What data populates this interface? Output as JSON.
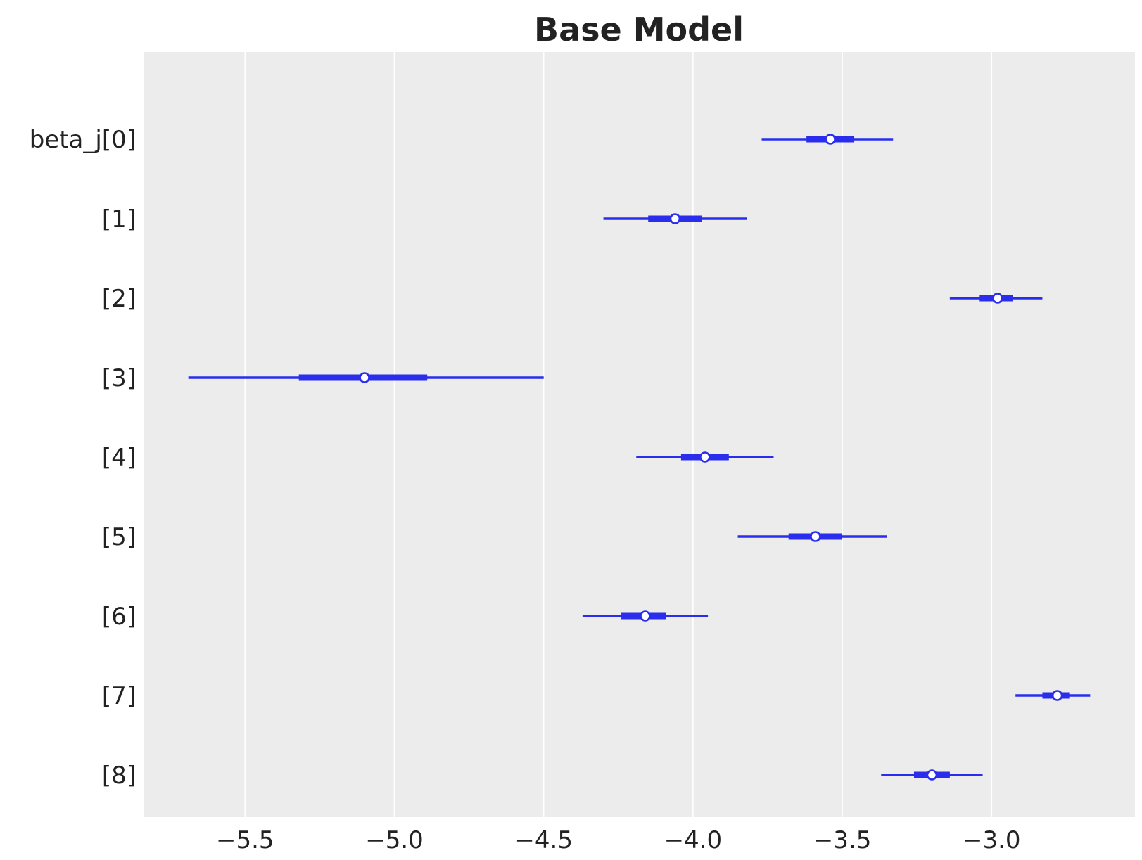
{
  "chart_data": {
    "type": "forest",
    "title": "Base Model",
    "xlabel": "",
    "ylabel": "",
    "xlim": [
      -5.84,
      -2.52
    ],
    "grid": "vertical",
    "x_ticks": [
      {
        "value": -5.5,
        "label": "−5.5"
      },
      {
        "value": -5.0,
        "label": "−5.0"
      },
      {
        "value": -4.5,
        "label": "−4.5"
      },
      {
        "value": -4.0,
        "label": "−4.0"
      },
      {
        "value": -3.5,
        "label": "−3.5"
      },
      {
        "value": -3.0,
        "label": "−3.0"
      }
    ],
    "rows": [
      {
        "label": "beta_j[0]",
        "mean": -3.54,
        "hdi_low": -3.77,
        "hdi_high": -3.33,
        "iqr_low": -3.62,
        "iqr_high": -3.46
      },
      {
        "label": "[1]",
        "mean": -4.06,
        "hdi_low": -4.3,
        "hdi_high": -3.82,
        "iqr_low": -4.15,
        "iqr_high": -3.97
      },
      {
        "label": "[2]",
        "mean": -2.98,
        "hdi_low": -3.14,
        "hdi_high": -2.83,
        "iqr_low": -3.04,
        "iqr_high": -2.93
      },
      {
        "label": "[3]",
        "mean": -5.1,
        "hdi_low": -5.69,
        "hdi_high": -4.5,
        "iqr_low": -5.32,
        "iqr_high": -4.89
      },
      {
        "label": "[4]",
        "mean": -3.96,
        "hdi_low": -4.19,
        "hdi_high": -3.73,
        "iqr_low": -4.04,
        "iqr_high": -3.88
      },
      {
        "label": "[5]",
        "mean": -3.59,
        "hdi_low": -3.85,
        "hdi_high": -3.35,
        "iqr_low": -3.68,
        "iqr_high": -3.5
      },
      {
        "label": "[6]",
        "mean": -4.16,
        "hdi_low": -4.37,
        "hdi_high": -3.95,
        "iqr_low": -4.24,
        "iqr_high": -4.09
      },
      {
        "label": "[7]",
        "mean": -2.78,
        "hdi_low": -2.92,
        "hdi_high": -2.67,
        "iqr_low": -2.83,
        "iqr_high": -2.74
      },
      {
        "label": "[8]",
        "mean": -3.2,
        "hdi_low": -3.37,
        "hdi_high": -3.03,
        "iqr_low": -3.26,
        "iqr_high": -3.14
      }
    ],
    "colors": {
      "line": "#2a2eec",
      "background": "#ececec",
      "grid": "#ffffff",
      "marker_fill": "#ffffff",
      "text": "#222222"
    }
  }
}
